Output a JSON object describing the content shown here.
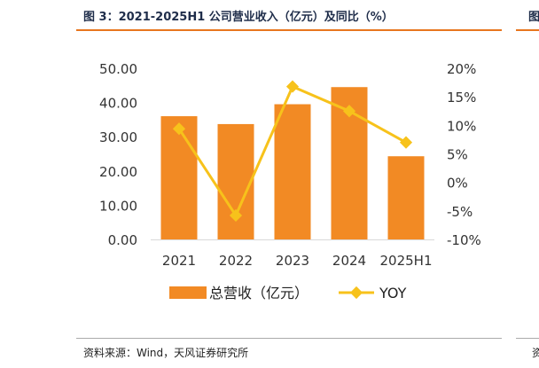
{
  "figure": {
    "title": "图 3：2021-2025H1 公司营业收入（亿元）及同比（%）",
    "source": "资料来源：Wind，天风证券研究所",
    "next_title_fragment": "图",
    "next_source_fragment": "资"
  },
  "colors": {
    "bar": "#f28a24",
    "line": "#f7c21b",
    "accent_rule": "#e8761e"
  },
  "chart_data": {
    "type": "bar",
    "categories": [
      "2021",
      "2022",
      "2023",
      "2024",
      "2025H1"
    ],
    "series": [
      {
        "name": "总营收（亿元）",
        "kind": "bar",
        "axis": "left",
        "values": [
          36.0,
          33.7,
          39.5,
          44.5,
          24.3
        ]
      },
      {
        "name": "YOY",
        "kind": "line",
        "axis": "right",
        "values": [
          9.4,
          -5.8,
          16.8,
          12.5,
          7.0
        ]
      }
    ],
    "y_left": {
      "min": 0,
      "max": 50,
      "step": 10,
      "tick_labels": [
        "0.00",
        "10.00",
        "20.00",
        "30.00",
        "40.00",
        "50.00"
      ]
    },
    "y_right": {
      "min": -10,
      "max": 20,
      "step": 5,
      "tick_labels": [
        "-10%",
        "-5%",
        "0%",
        "5%",
        "10%",
        "15%",
        "20%"
      ]
    },
    "legend": {
      "position": "bottom",
      "items": [
        "总营收（亿元）",
        "YOY"
      ]
    },
    "grid": false
  }
}
